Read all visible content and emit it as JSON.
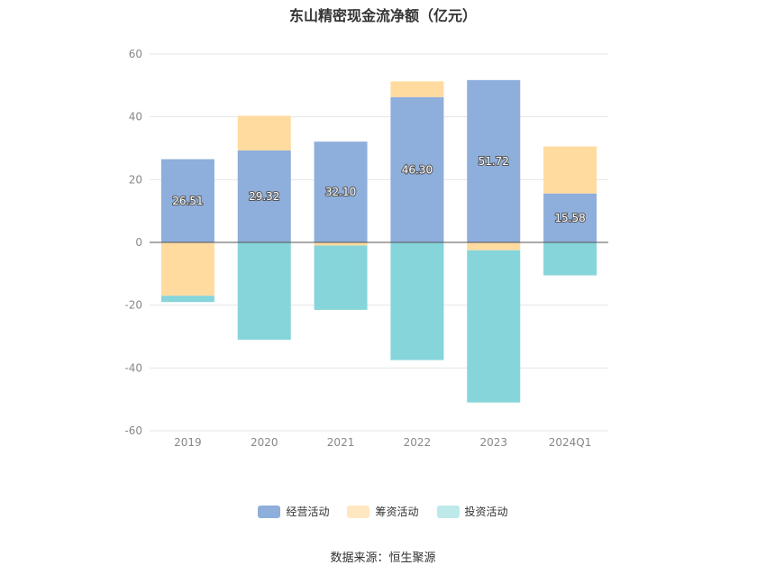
{
  "title": "东山精密现金流净额（亿元）",
  "source": "数据来源：恒生聚源",
  "colors": {
    "operating": "#8eaedb",
    "financing": "#ffdba0",
    "investing": "#86d5da",
    "investing_legend": "#bde9eb",
    "financing_legend": "#ffe7c2"
  },
  "chart_data": {
    "type": "bar",
    "stacked": true,
    "title": "东山精密现金流净额（亿元）",
    "categories": [
      "2019",
      "2020",
      "2021",
      "2022",
      "2023",
      "2024Q1"
    ],
    "ylim": [
      -60,
      60
    ],
    "yticks": [
      60,
      40,
      20,
      0,
      -20,
      -40,
      -60
    ],
    "grid": true,
    "legend_position": "bottom",
    "series": [
      {
        "name": "经营活动",
        "values": [
          26.51,
          29.32,
          32.1,
          46.3,
          51.72,
          15.58
        ],
        "labels": [
          "26.51",
          "29.32",
          "32.10",
          "46.30",
          "51.72",
          "15.58"
        ]
      },
      {
        "name": "筹资活动",
        "values": [
          -17.0,
          11.0,
          -1.0,
          5.0,
          -2.5,
          15.0
        ]
      },
      {
        "name": "投资活动",
        "values": [
          -2.0,
          -31.0,
          -20.5,
          -37.5,
          -48.5,
          -10.5
        ]
      }
    ]
  }
}
